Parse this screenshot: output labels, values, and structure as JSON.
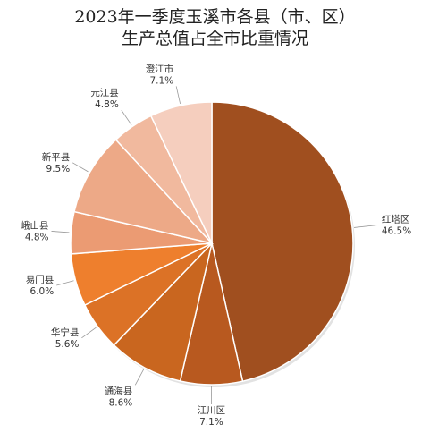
{
  "chart_data": {
    "type": "pie",
    "title": "2023年一季度玉溪市各县（市、区）",
    "subtitle": "生产总值占全市比重情况",
    "unit": "%",
    "slices": [
      {
        "name": "红塔区",
        "value": 46.5,
        "label": "46.5%",
        "color": "#A04F1F"
      },
      {
        "name": "江川区",
        "value": 7.1,
        "label": "7.1%",
        "color": "#B8591F"
      },
      {
        "name": "通海县",
        "value": 8.6,
        "label": "8.6%",
        "color": "#C9661F"
      },
      {
        "name": "华宁县",
        "value": 5.6,
        "label": "5.6%",
        "color": "#DC7226"
      },
      {
        "name": "易门县",
        "value": 6.0,
        "label": "6.0%",
        "color": "#EE7F2D"
      },
      {
        "name": "峨山县",
        "value": 4.8,
        "label": "4.8%",
        "color": "#EB9B73"
      },
      {
        "name": "新平县",
        "value": 9.5,
        "label": "9.5%",
        "color": "#EDA987"
      },
      {
        "name": "元江县",
        "value": 4.8,
        "label": "4.8%",
        "color": "#F1B99E"
      },
      {
        "name": "澄江市",
        "value": 7.1,
        "label": "7.1%",
        "color": "#F5CEBE"
      }
    ]
  }
}
